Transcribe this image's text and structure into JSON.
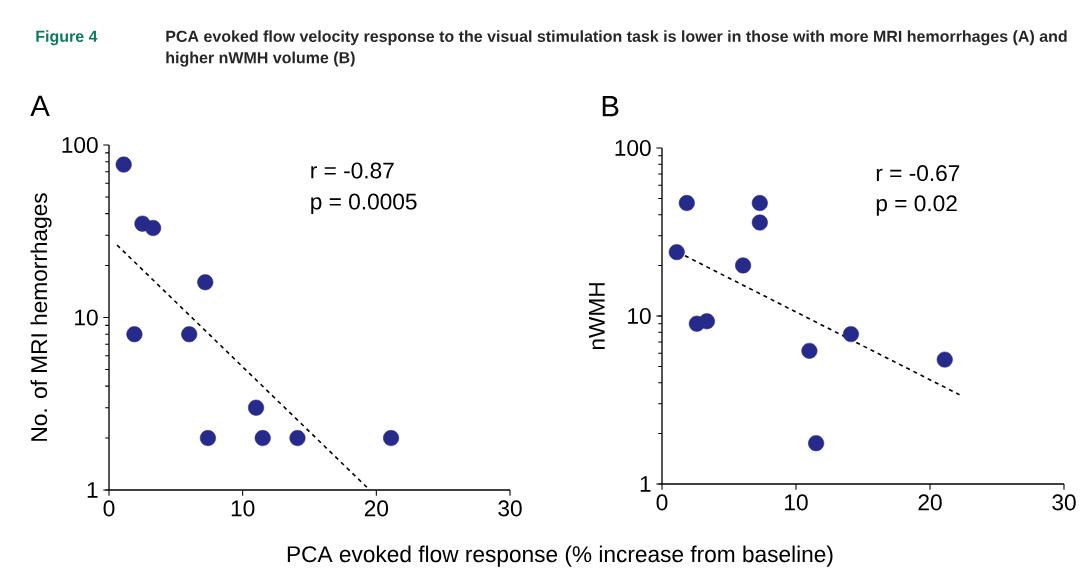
{
  "chart_data": [
    {
      "type": "scatter",
      "title": "A",
      "xlabel": "PCA evoked flow response (% increase from baseline)",
      "ylabel": "No. of MRI hemorrhages",
      "annotations": [
        "Figure 4",
        "PCA evoked flow velocity response to the visual stimulation task is lower in those with more MRI hemorrhages (A) and higher nWMH volume (B)",
        "r = -0.87",
        "p = 0.0005"
      ],
      "log": "y",
      "xlim": [
        0,
        30
      ],
      "xticks": [
        0,
        10,
        20,
        30
      ],
      "ylim": [
        1,
        100
      ],
      "yticks": [
        1,
        10,
        100
      ],
      "series": [
        {
          "color": "#262a8a",
          "marker": "circle",
          "x": [
            1.1,
            2.5,
            3.3,
            7.2,
            1.9,
            6.0,
            11.0,
            7.4,
            11.5,
            14.1,
            21.1
          ],
          "values": [
            77,
            35,
            33,
            16,
            8,
            8,
            3,
            2,
            2,
            2,
            2
          ]
        },
        {
          "type": "line",
          "color": "#000000",
          "line_style": "dashed",
          "x": [
            0.6,
            19.5
          ],
          "values": [
            26.3,
            1
          ]
        }
      ]
    },
    {
      "type": "scatter",
      "title": "B",
      "ylabel": "nWMH",
      "annotations": [
        "r = -0.67",
        "p = 0.02"
      ],
      "log": "y",
      "xlim": [
        0,
        30
      ],
      "xticks": [
        0,
        10,
        20,
        30
      ],
      "ylim": [
        1,
        100
      ],
      "yticks": [
        1,
        10,
        100
      ],
      "series": [
        {
          "color": "#262a8a",
          "marker": "circle",
          "x": [
            1.85,
            7.3,
            7.3,
            1.1,
            6.05,
            2.6,
            3.35,
            11.0,
            14.1,
            21.1,
            11.5
          ],
          "values": [
            47,
            47,
            36,
            24,
            20,
            9.0,
            9.3,
            6.2,
            7.8,
            5.5,
            1.75
          ]
        },
        {
          "type": "line",
          "color": "#000000",
          "line_style": "dashed",
          "x": [
            0.65,
            22.2
          ],
          "values": [
            25.2,
            3.4
          ]
        }
      ]
    }
  ]
}
